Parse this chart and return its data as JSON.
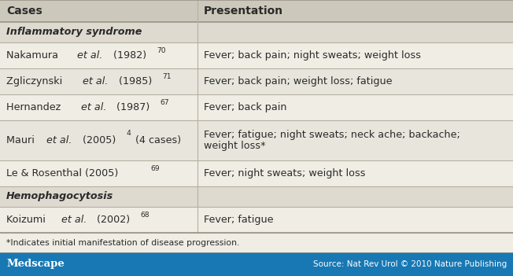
{
  "header": [
    "Cases",
    "Presentation"
  ],
  "col_split": 0.385,
  "rows": [
    {
      "type": "subheader",
      "col1": "Inflammatory syndrome",
      "bg": "#dedad0"
    },
    {
      "type": "data",
      "parts": [
        {
          "text": "Nakamura ",
          "style": "normal"
        },
        {
          "text": "et al.",
          "style": "italic"
        },
        {
          "text": " (1982)",
          "style": "normal"
        },
        {
          "text": "70",
          "style": "super"
        }
      ],
      "col2": "Fever; back pain; night sweats; weight loss",
      "bg": "#f0ede4"
    },
    {
      "type": "data",
      "parts": [
        {
          "text": "Zgliczynski ",
          "style": "normal"
        },
        {
          "text": "et al.",
          "style": "italic"
        },
        {
          "text": " (1985)",
          "style": "normal"
        },
        {
          "text": "71",
          "style": "super"
        }
      ],
      "col2": "Fever; back pain; weight loss; fatigue",
      "bg": "#e8e5dc"
    },
    {
      "type": "data",
      "parts": [
        {
          "text": "Hernandez ",
          "style": "normal"
        },
        {
          "text": "et al.",
          "style": "italic"
        },
        {
          "text": " (1987)",
          "style": "normal"
        },
        {
          "text": "67",
          "style": "super"
        }
      ],
      "col2": "Fever; back pain",
      "bg": "#f0ede4"
    },
    {
      "type": "data_tall",
      "parts": [
        {
          "text": "Mauri ",
          "style": "normal"
        },
        {
          "text": "et al.",
          "style": "italic"
        },
        {
          "text": " (2005)",
          "style": "normal"
        },
        {
          "text": "4",
          "style": "super"
        },
        {
          "text": " (4 cases)",
          "style": "normal"
        }
      ],
      "col2_line1": "Fever; fatigue; night sweats; neck ache; backache;",
      "col2_line2": "weight loss*",
      "bg": "#e8e5dc"
    },
    {
      "type": "data",
      "parts": [
        {
          "text": "Le & Rosenthal (2005)",
          "style": "normal"
        },
        {
          "text": "69",
          "style": "super"
        }
      ],
      "col2": "Fever; night sweats; weight loss",
      "bg": "#f0ede4"
    },
    {
      "type": "subheader",
      "col1": "Hemophagocytosis",
      "bg": "#dedad0"
    },
    {
      "type": "data",
      "parts": [
        {
          "text": "Koizumi ",
          "style": "normal"
        },
        {
          "text": "et al.",
          "style": "italic"
        },
        {
          "text": " (2002)",
          "style": "normal"
        },
        {
          "text": "68",
          "style": "super"
        }
      ],
      "col2": "Fever; fatigue",
      "bg": "#f0ede4"
    }
  ],
  "footnote": "*Indicates initial manifestation of disease progression.",
  "footer_bg": "#1878b4",
  "footer_left": "Medscape",
  "footer_right": "Source: Nat Rev Urol © 2010 Nature Publishing",
  "header_bg": "#ccc9bc",
  "line_color": "#b5b0a3",
  "text_color": "#2a2a2a",
  "header_font_size": 10.0,
  "body_font_size": 9.2,
  "footnote_font_size": 7.8,
  "footer_font_size": 9.5
}
